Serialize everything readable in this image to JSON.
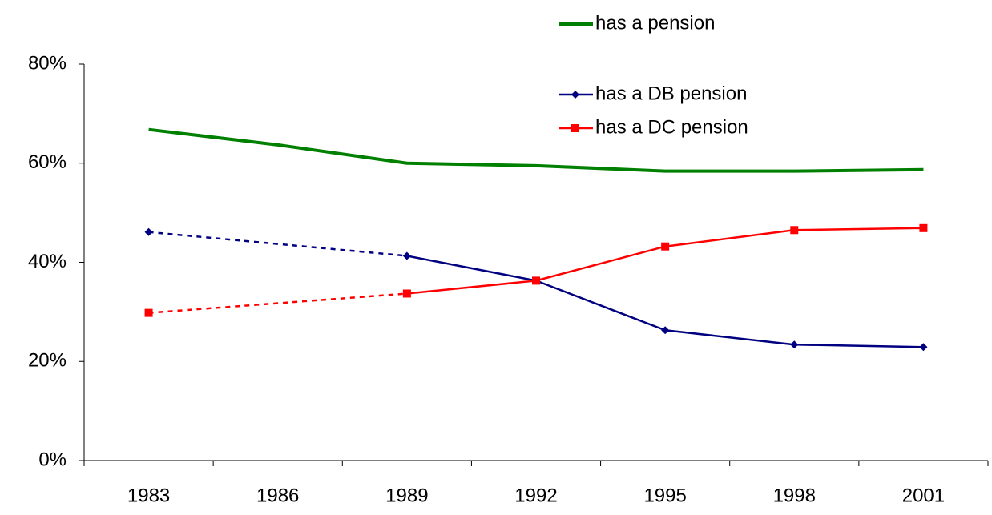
{
  "chart_data": {
    "type": "line",
    "categories": [
      "1983",
      "1986",
      "1989",
      "1992",
      "1995",
      "1998",
      "2001"
    ],
    "series": [
      {
        "name": "has a pension",
        "color": "#008000",
        "marker": "none",
        "values": [
          66.8,
          63.7,
          60.0,
          59.5,
          58.4,
          58.4,
          58.7
        ]
      },
      {
        "name": "has a DB pension",
        "color": "#000080",
        "marker": "diamond",
        "values": [
          46.1,
          null,
          41.3,
          36.3,
          26.3,
          23.4,
          22.9
        ]
      },
      {
        "name": "has a DC pension",
        "color": "#ff0000",
        "marker": "square",
        "values": [
          29.8,
          null,
          33.7,
          36.3,
          43.2,
          46.5,
          46.9
        ]
      }
    ],
    "ylim": [
      0,
      80
    ],
    "yticks": [
      {
        "value": 0,
        "label": "0%"
      },
      {
        "value": 20,
        "label": "20%"
      },
      {
        "value": 40,
        "label": "40%"
      },
      {
        "value": 60,
        "label": "60%"
      },
      {
        "value": 80,
        "label": "80%"
      }
    ],
    "grid": false
  }
}
